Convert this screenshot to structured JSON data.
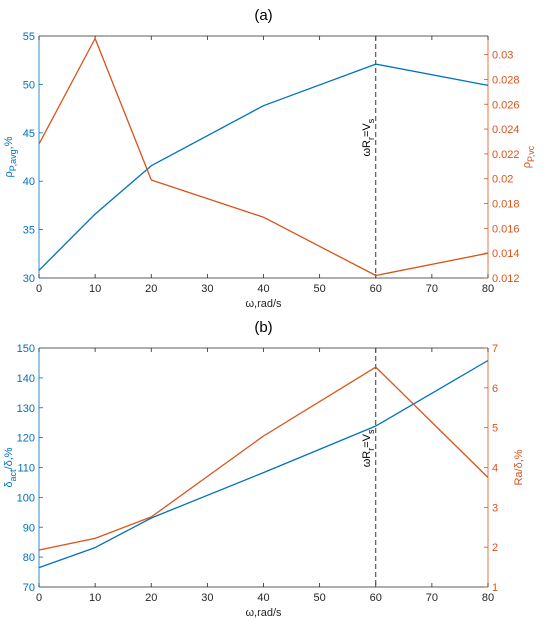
{
  "chart_data": [
    {
      "type": "line",
      "title": "(a)",
      "xlabel": "ω,rad/s",
      "x": [
        0,
        10,
        20,
        40,
        60,
        80
      ],
      "xlim": [
        0,
        80
      ],
      "xticks": [
        0,
        10,
        20,
        30,
        40,
        50,
        60,
        70,
        80
      ],
      "axes": {
        "left": {
          "label": "ρP,avg,%",
          "label_main": "ρ",
          "label_sub": "P,avg",
          "label_suffix": ",%",
          "ylim": [
            30,
            55
          ],
          "ticks": [
            30,
            35,
            40,
            45,
            50,
            55
          ],
          "color": "#0072BD"
        },
        "right": {
          "label": "ρP,vc",
          "label_main": "ρ",
          "label_sub": "P,vc",
          "label_suffix": "",
          "ylim": [
            0.012,
            0.0315
          ],
          "ticks": [
            0.012,
            0.014,
            0.016,
            0.018,
            0.02,
            0.022,
            0.024,
            0.026,
            0.028,
            0.03
          ],
          "color": "#D95319"
        }
      },
      "series": [
        {
          "axis": "left",
          "color": "#0072BD",
          "values": [
            30.8,
            36.6,
            41.6,
            47.8,
            52.1,
            49.9
          ]
        },
        {
          "axis": "right",
          "color": "#D95319",
          "values": [
            0.0228,
            0.0313,
            0.0199,
            0.0169,
            0.0122,
            0.014
          ]
        }
      ],
      "annotation": {
        "x": 60,
        "text": "ωRr=Vs",
        "t_main": "ωR",
        "t_sub": "r",
        "t_mid": "=V",
        "t_sub2": "s"
      },
      "grid": false
    },
    {
      "type": "line",
      "title": "(b)",
      "xlabel": "ω,rad/s",
      "x": [
        0,
        10,
        20,
        40,
        60,
        80
      ],
      "xlim": [
        0,
        80
      ],
      "xticks": [
        0,
        10,
        20,
        30,
        40,
        50,
        60,
        70,
        80
      ],
      "axes": {
        "left": {
          "label": "δact/δ,%",
          "label_main": "δ",
          "label_sub": "act",
          "label_suffix": "/δ,%",
          "ylim": [
            70,
            150
          ],
          "ticks": [
            70,
            80,
            90,
            100,
            110,
            120,
            130,
            140,
            150
          ],
          "color": "#0072BD"
        },
        "right": {
          "label": "Ra/δ,%",
          "label_main": "Ra/δ,%",
          "label_sub": "",
          "label_suffix": "",
          "ylim": [
            1,
            7
          ],
          "ticks": [
            1,
            2,
            3,
            4,
            5,
            6,
            7
          ],
          "color": "#D95319"
        }
      },
      "series": [
        {
          "axis": "left",
          "color": "#0072BD",
          "values": [
            76.5,
            83.2,
            93.1,
            108.3,
            123.9,
            145.8
          ]
        },
        {
          "axis": "right",
          "color": "#D95319",
          "values": [
            1.93,
            2.22,
            2.76,
            4.79,
            6.52,
            3.75
          ]
        }
      ],
      "annotation": {
        "x": 60,
        "text": "ωRr=Vs",
        "t_main": "ωR",
        "t_sub": "r",
        "t_mid": "=V",
        "t_sub2": "s"
      },
      "grid": false
    }
  ]
}
